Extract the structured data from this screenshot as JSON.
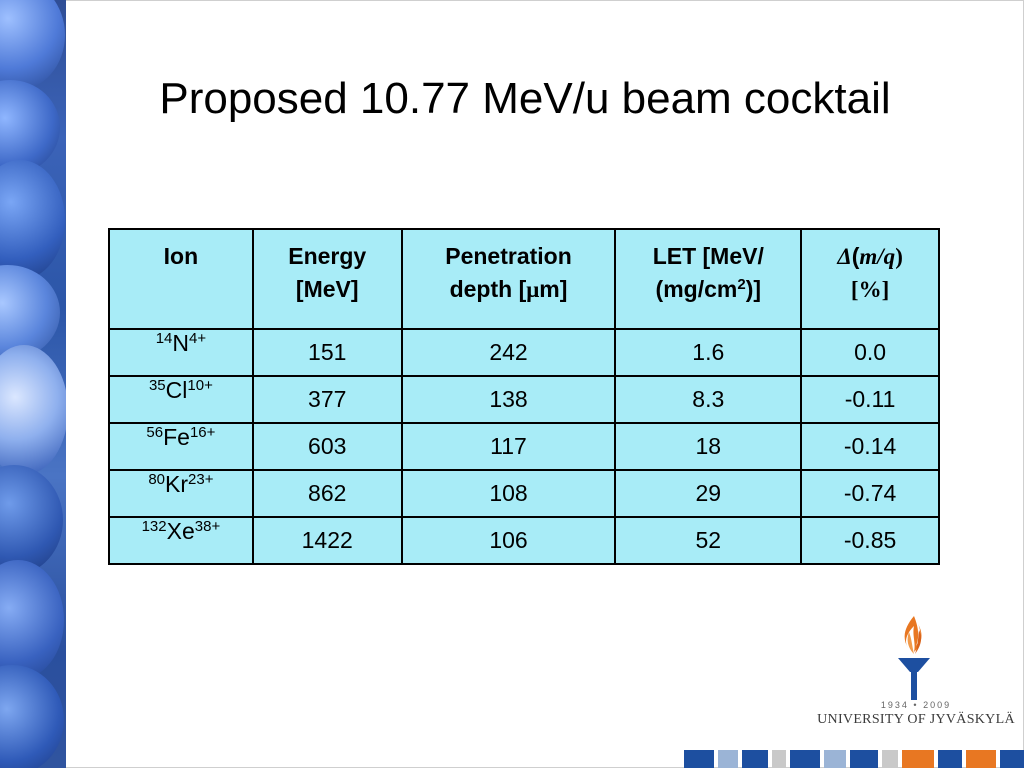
{
  "title": "Proposed 10.77 MeV/u beam cocktail",
  "table": {
    "headers": {
      "ion": "Ion",
      "energy_line1": "Energy",
      "energy_line2": "[MeV]",
      "pen_line1": "Penetration",
      "pen_line2_pre": "depth [",
      "pen_mu": "μ",
      "pen_line2_post": "m]",
      "let_line1": "LET [MeV/",
      "let_line2_pre": "(mg/cm",
      "let_sup": "2",
      "let_line2_post": ")]",
      "mq_delta": "Δ",
      "mq_open": "(",
      "mq_expr": "m/q",
      "mq_close": ")",
      "mq_line2": "[%]"
    },
    "rows": [
      {
        "mass": "14",
        "el": "N",
        "charge": "4+",
        "energy": "151",
        "depth": "242",
        "let": "1.6",
        "mq": "0.0"
      },
      {
        "mass": "35",
        "el": "Cl",
        "charge": "10+",
        "energy": "377",
        "depth": "138",
        "let": "8.3",
        "mq": "-0.11"
      },
      {
        "mass": "56",
        "el": "Fe",
        "charge": "16+",
        "energy": "603",
        "depth": "117",
        "let": "18",
        "mq": "-0.14"
      },
      {
        "mass": "80",
        "el": "Kr",
        "charge": "23+",
        "energy": "862",
        "depth": "108",
        "let": "29",
        "mq": "-0.74"
      },
      {
        "mass": "132",
        "el": "Xe",
        "charge": "38+",
        "energy": "1422",
        "depth": "106",
        "let": "52",
        "mq": "-0.85"
      }
    ]
  },
  "logo": {
    "years": "1934 • 2009",
    "university": "UNIVERSITY OF JYVÄSKYLÄ",
    "icon": "torch-icon"
  },
  "colors": {
    "table_fill": "#a8ecf7",
    "flame": "#e87722",
    "torch_blue": "#1d4fa0",
    "blocks": [
      "#1d4fa0",
      "#e87722",
      "#9bb4d6",
      "#c9c9c9"
    ]
  }
}
